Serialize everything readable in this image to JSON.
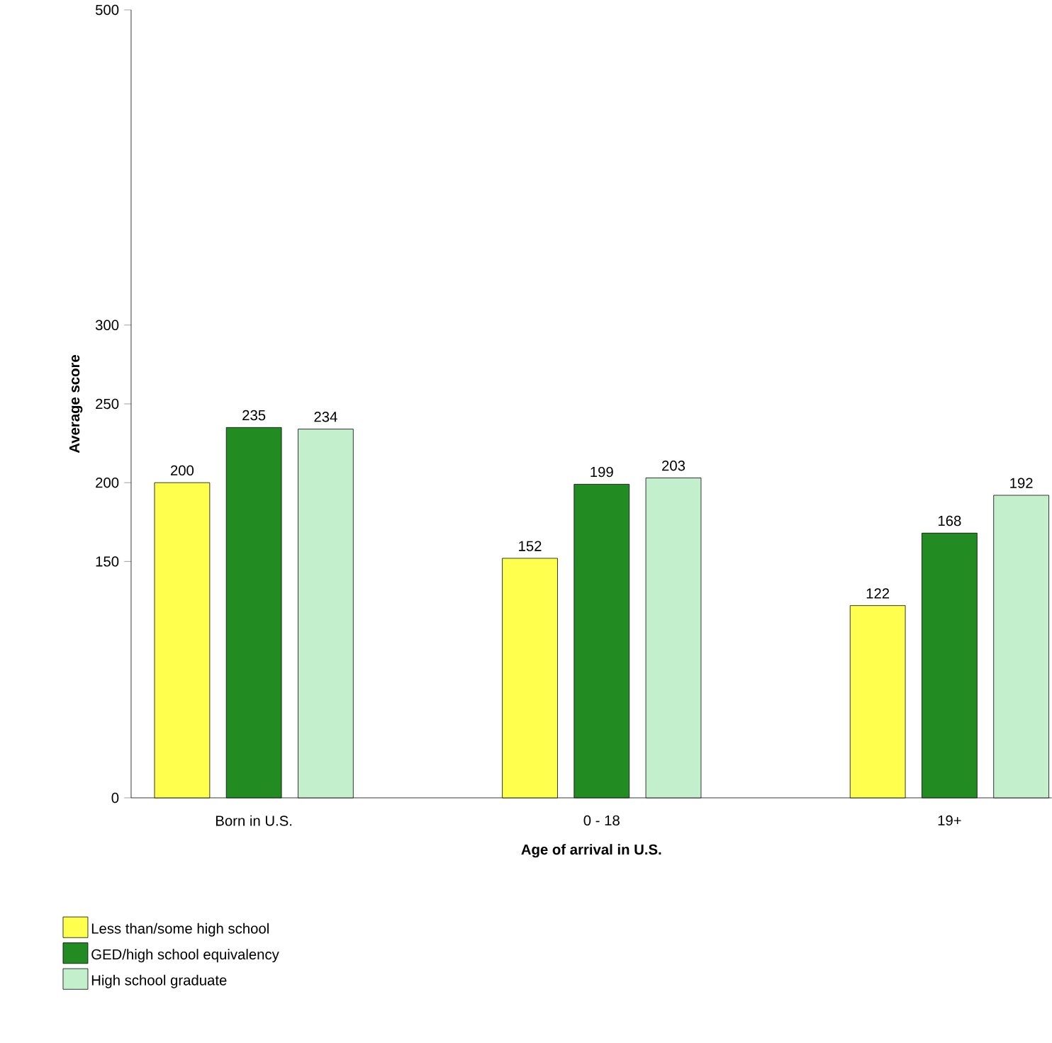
{
  "chart_data": {
    "type": "bar",
    "xlabel": "Age of arrival in U.S.",
    "ylabel": "Average score",
    "categories": [
      "Born in U.S.",
      "0 - 18",
      "19+"
    ],
    "series": [
      {
        "name": "Less than/some high school",
        "color": "#ffff4d",
        "values": [
          200,
          152,
          122
        ]
      },
      {
        "name": "GED/high school equivalency",
        "color": "#228b22",
        "values": [
          235,
          199,
          168
        ]
      },
      {
        "name": "High school graduate",
        "color": "#c3efcc",
        "values": [
          234,
          203,
          192
        ]
      }
    ],
    "ylim": [
      0,
      500
    ],
    "yticks": [
      0,
      150,
      200,
      250,
      300,
      500
    ],
    "data_labels": true,
    "legend": "bottom",
    "grid": false
  }
}
